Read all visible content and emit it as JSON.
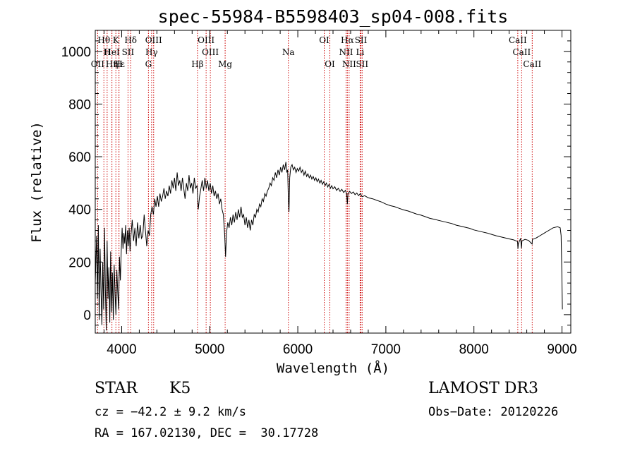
{
  "chart_data": {
    "type": "line",
    "title": "spec-55984-B5598403_sp04-008.fits",
    "xlabel": "Wavelength (Å)",
    "ylabel": "Flux (relative)",
    "xlim": [
      3700,
      9100
    ],
    "ylim": [
      -70,
      1080
    ],
    "xticks": [
      4000,
      5000,
      6000,
      7000,
      8000,
      9000
    ],
    "yticks": [
      0,
      200,
      400,
      600,
      800,
      1000
    ],
    "ytick_labels": [
      "0",
      "200",
      "400",
      "600",
      "800",
      "1000"
    ],
    "xtick_labels": [
      "4000",
      "5000",
      "6000",
      "7000",
      "8000",
      "9000"
    ],
    "line_color": "#cc0000",
    "spectrum_color": "#000000",
    "spectral_lines": [
      {
        "label": "Hθ",
        "wave": 3798,
        "row": 0
      },
      {
        "label": "K",
        "wave": 3934,
        "row": 0
      },
      {
        "label": "Hδ",
        "wave": 4102,
        "row": 0
      },
      {
        "label": "OIII",
        "wave": 4363,
        "row": 0
      },
      {
        "label": "OIII",
        "wave": 4959,
        "row": 0
      },
      {
        "label": "OI",
        "wave": 6300,
        "row": 0
      },
      {
        "label": "Hα",
        "wave": 6563,
        "row": 0
      },
      {
        "label": "SII",
        "wave": 6717,
        "row": 0
      },
      {
        "label": "CaII",
        "wave": 8498,
        "row": 0
      },
      {
        "label": "H",
        "wave": 3835,
        "row": 1
      },
      {
        "label": "HeI",
        "wave": 3889,
        "row": 1
      },
      {
        "label": "SII",
        "wave": 4072,
        "row": 1
      },
      {
        "label": "Hγ",
        "wave": 4340,
        "row": 1
      },
      {
        "label": "OIII",
        "wave": 5007,
        "row": 1
      },
      {
        "label": "Na",
        "wave": 5893,
        "row": 1
      },
      {
        "label": "NII",
        "wave": 6548,
        "row": 1
      },
      {
        "label": "Li",
        "wave": 6708,
        "row": 1
      },
      {
        "label": "CaII",
        "wave": 8542,
        "row": 1
      },
      {
        "label": "OII",
        "wave": 3727,
        "row": 2
      },
      {
        "label": "Hε",
        "wave": 3970,
        "row": 2
      },
      {
        "label": "Hη",
        "wave": 3889,
        "row": 2
      },
      {
        "label": "H",
        "wave": 3968,
        "row": 2
      },
      {
        "label": "G",
        "wave": 4304,
        "row": 2
      },
      {
        "label": "Hβ",
        "wave": 4861,
        "row": 2
      },
      {
        "label": "Mg",
        "wave": 5175,
        "row": 2
      },
      {
        "label": "OI",
        "wave": 6364,
        "row": 2
      },
      {
        "label": "NII",
        "wave": 6583,
        "row": 2
      },
      {
        "label": "SII",
        "wave": 6731,
        "row": 2
      },
      {
        "label": "CaII",
        "wave": 8662,
        "row": 2
      }
    ],
    "spectrum": [
      [
        3700,
        120
      ],
      [
        3715,
        300
      ],
      [
        3725,
        60
      ],
      [
        3735,
        340
      ],
      [
        3745,
        -20
      ],
      [
        3755,
        250
      ],
      [
        3765,
        100
      ],
      [
        3775,
        -40
      ],
      [
        3785,
        200
      ],
      [
        3795,
        20
      ],
      [
        3805,
        330
      ],
      [
        3815,
        90
      ],
      [
        3825,
        -60
      ],
      [
        3835,
        280
      ],
      [
        3845,
        60
      ],
      [
        3855,
        180
      ],
      [
        3865,
        -30
      ],
      [
        3875,
        240
      ],
      [
        3885,
        10
      ],
      [
        3895,
        160
      ],
      [
        3905,
        -20
      ],
      [
        3915,
        190
      ],
      [
        3925,
        80
      ],
      [
        3935,
        0
      ],
      [
        3945,
        170
      ],
      [
        3955,
        90
      ],
      [
        3965,
        20
      ],
      [
        3975,
        220
      ],
      [
        3985,
        130
      ],
      [
        3995,
        240
      ],
      [
        4005,
        330
      ],
      [
        4015,
        250
      ],
      [
        4025,
        310
      ],
      [
        4035,
        270
      ],
      [
        4045,
        340
      ],
      [
        4055,
        230
      ],
      [
        4065,
        320
      ],
      [
        4075,
        260
      ],
      [
        4085,
        330
      ],
      [
        4095,
        240
      ],
      [
        4105,
        300
      ],
      [
        4120,
        360
      ],
      [
        4135,
        280
      ],
      [
        4150,
        330
      ],
      [
        4165,
        260
      ],
      [
        4180,
        350
      ],
      [
        4195,
        290
      ],
      [
        4210,
        340
      ],
      [
        4225,
        290
      ],
      [
        4240,
        300
      ],
      [
        4255,
        380
      ],
      [
        4270,
        320
      ],
      [
        4285,
        260
      ],
      [
        4300,
        320
      ],
      [
        4315,
        300
      ],
      [
        4330,
        380
      ],
      [
        4345,
        410
      ],
      [
        4360,
        380
      ],
      [
        4375,
        440
      ],
      [
        4390,
        410
      ],
      [
        4405,
        450
      ],
      [
        4420,
        410
      ],
      [
        4435,
        460
      ],
      [
        4450,
        430
      ],
      [
        4465,
        450
      ],
      [
        4480,
        480
      ],
      [
        4495,
        440
      ],
      [
        4510,
        470
      ],
      [
        4525,
        450
      ],
      [
        4540,
        490
      ],
      [
        4555,
        460
      ],
      [
        4570,
        510
      ],
      [
        4585,
        480
      ],
      [
        4600,
        520
      ],
      [
        4615,
        470
      ],
      [
        4630,
        540
      ],
      [
        4645,
        490
      ],
      [
        4660,
        510
      ],
      [
        4675,
        470
      ],
      [
        4690,
        520
      ],
      [
        4705,
        480
      ],
      [
        4720,
        440
      ],
      [
        4735,
        500
      ],
      [
        4750,
        470
      ],
      [
        4765,
        530
      ],
      [
        4780,
        480
      ],
      [
        4795,
        500
      ],
      [
        4810,
        460
      ],
      [
        4825,
        520
      ],
      [
        4840,
        480
      ],
      [
        4855,
        490
      ],
      [
        4870,
        400
      ],
      [
        4885,
        450
      ],
      [
        4900,
        480
      ],
      [
        4915,
        510
      ],
      [
        4930,
        470
      ],
      [
        4945,
        520
      ],
      [
        4960,
        480
      ],
      [
        4975,
        510
      ],
      [
        4990,
        470
      ],
      [
        5005,
        500
      ],
      [
        5020,
        460
      ],
      [
        5035,
        490
      ],
      [
        5050,
        450
      ],
      [
        5065,
        470
      ],
      [
        5080,
        440
      ],
      [
        5095,
        460
      ],
      [
        5110,
        420
      ],
      [
        5125,
        440
      ],
      [
        5140,
        400
      ],
      [
        5155,
        380
      ],
      [
        5170,
        300
      ],
      [
        5180,
        220
      ],
      [
        5190,
        310
      ],
      [
        5205,
        350
      ],
      [
        5220,
        330
      ],
      [
        5235,
        370
      ],
      [
        5250,
        340
      ],
      [
        5265,
        380
      ],
      [
        5280,
        350
      ],
      [
        5295,
        390
      ],
      [
        5310,
        360
      ],
      [
        5325,
        400
      ],
      [
        5340,
        370
      ],
      [
        5355,
        410
      ],
      [
        5370,
        370
      ],
      [
        5385,
        380
      ],
      [
        5400,
        340
      ],
      [
        5415,
        370
      ],
      [
        5430,
        330
      ],
      [
        5445,
        360
      ],
      [
        5460,
        320
      ],
      [
        5475,
        360
      ],
      [
        5490,
        340
      ],
      [
        5505,
        380
      ],
      [
        5520,
        370
      ],
      [
        5535,
        400
      ],
      [
        5550,
        390
      ],
      [
        5565,
        420
      ],
      [
        5580,
        410
      ],
      [
        5595,
        440
      ],
      [
        5610,
        430
      ],
      [
        5625,
        460
      ],
      [
        5640,
        450
      ],
      [
        5655,
        470
      ],
      [
        5670,
        480
      ],
      [
        5685,
        500
      ],
      [
        5700,
        490
      ],
      [
        5715,
        520
      ],
      [
        5730,
        510
      ],
      [
        5745,
        540
      ],
      [
        5760,
        520
      ],
      [
        5775,
        550
      ],
      [
        5790,
        530
      ],
      [
        5805,
        560
      ],
      [
        5820,
        540
      ],
      [
        5835,
        570
      ],
      [
        5850,
        550
      ],
      [
        5865,
        580
      ],
      [
        5875,
        540
      ],
      [
        5885,
        550
      ],
      [
        5893,
        440
      ],
      [
        5900,
        390
      ],
      [
        5908,
        520
      ],
      [
        5920,
        560
      ],
      [
        5935,
        570
      ],
      [
        5950,
        550
      ],
      [
        5965,
        560
      ],
      [
        5980,
        540
      ],
      [
        5995,
        555
      ],
      [
        6010,
        545
      ],
      [
        6025,
        560
      ],
      [
        6040,
        540
      ],
      [
        6055,
        550
      ],
      [
        6070,
        530
      ],
      [
        6085,
        545
      ],
      [
        6100,
        525
      ],
      [
        6115,
        535
      ],
      [
        6130,
        520
      ],
      [
        6145,
        530
      ],
      [
        6160,
        515
      ],
      [
        6175,
        525
      ],
      [
        6190,
        510
      ],
      [
        6205,
        520
      ],
      [
        6220,
        505
      ],
      [
        6235,
        515
      ],
      [
        6250,
        500
      ],
      [
        6265,
        510
      ],
      [
        6280,
        495
      ],
      [
        6295,
        505
      ],
      [
        6310,
        490
      ],
      [
        6325,
        500
      ],
      [
        6340,
        485
      ],
      [
        6355,
        495
      ],
      [
        6370,
        480
      ],
      [
        6385,
        490
      ],
      [
        6400,
        478
      ],
      [
        6420,
        486
      ],
      [
        6440,
        472
      ],
      [
        6460,
        480
      ],
      [
        6480,
        468
      ],
      [
        6500,
        476
      ],
      [
        6520,
        464
      ],
      [
        6540,
        472
      ],
      [
        6555,
        460
      ],
      [
        6563,
        420
      ],
      [
        6570,
        460
      ],
      [
        6590,
        468
      ],
      [
        6610,
        460
      ],
      [
        6630,
        466
      ],
      [
        6650,
        456
      ],
      [
        6670,
        462
      ],
      [
        6690,
        452
      ],
      [
        6710,
        460
      ],
      [
        6730,
        448
      ],
      [
        6760,
        452
      ],
      [
        6800,
        444
      ],
      [
        6850,
        440
      ],
      [
        6900,
        434
      ],
      [
        6950,
        428
      ],
      [
        7000,
        420
      ],
      [
        7050,
        414
      ],
      [
        7100,
        410
      ],
      [
        7150,
        404
      ],
      [
        7200,
        398
      ],
      [
        7250,
        394
      ],
      [
        7300,
        388
      ],
      [
        7350,
        382
      ],
      [
        7400,
        378
      ],
      [
        7450,
        372
      ],
      [
        7500,
        366
      ],
      [
        7550,
        362
      ],
      [
        7600,
        358
      ],
      [
        7650,
        354
      ],
      [
        7700,
        350
      ],
      [
        7750,
        346
      ],
      [
        7800,
        340
      ],
      [
        7850,
        336
      ],
      [
        7900,
        332
      ],
      [
        7950,
        328
      ],
      [
        8000,
        322
      ],
      [
        8050,
        318
      ],
      [
        8100,
        314
      ],
      [
        8150,
        310
      ],
      [
        8200,
        305
      ],
      [
        8250,
        300
      ],
      [
        8300,
        296
      ],
      [
        8350,
        292
      ],
      [
        8400,
        288
      ],
      [
        8450,
        284
      ],
      [
        8495,
        278
      ],
      [
        8500,
        250
      ],
      [
        8505,
        270
      ],
      [
        8530,
        290
      ],
      [
        8540,
        252
      ],
      [
        8545,
        280
      ],
      [
        8580,
        286
      ],
      [
        8620,
        282
      ],
      [
        8660,
        268
      ],
      [
        8665,
        286
      ],
      [
        8700,
        290
      ],
      [
        8750,
        300
      ],
      [
        8800,
        310
      ],
      [
        8850,
        320
      ],
      [
        8900,
        330
      ],
      [
        8950,
        334
      ],
      [
        8980,
        330
      ],
      [
        8990,
        300
      ],
      [
        8998,
        160
      ],
      [
        9005,
        20
      ]
    ]
  },
  "info": {
    "object_class": "STAR",
    "subclass": "K5",
    "survey": "LAMOST DR3",
    "cz": "cz = −42.2 ± 9.2 km/s",
    "obs_date": "Obs−Date: 20120226",
    "coords": "RA = 167.02130, DEC =  30.17728"
  }
}
